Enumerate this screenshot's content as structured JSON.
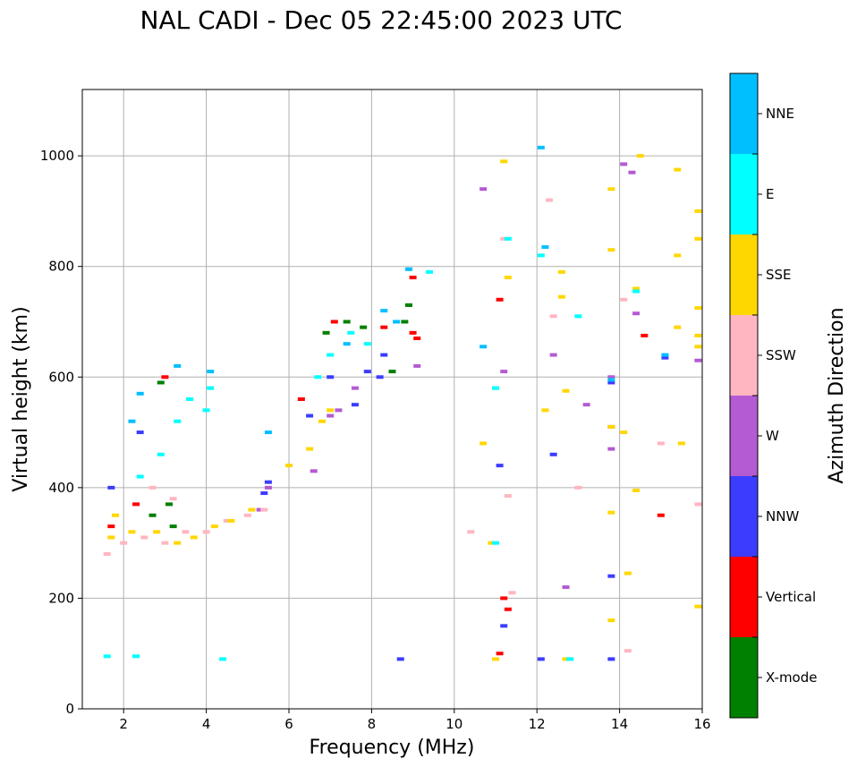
{
  "chart_data": {
    "type": "scatter",
    "title": "NAL CADI - Dec 05 22:45:00 2023 UTC",
    "xlabel": "Frequency (MHz)",
    "ylabel": "Virtual height (km)",
    "xlim": [
      1,
      16
    ],
    "ylim": [
      0,
      1120
    ],
    "xticks": [
      2,
      4,
      6,
      8,
      10,
      12,
      14,
      16
    ],
    "yticks": [
      0,
      200,
      400,
      600,
      800,
      1000
    ],
    "grid": true,
    "colorbar": {
      "label": "Azimuth Direction",
      "categories": [
        {
          "name": "X-mode",
          "color": "#008000"
        },
        {
          "name": "Vertical",
          "color": "#ff0000"
        },
        {
          "name": "NNW",
          "color": "#3c3cff"
        },
        {
          "name": "W",
          "color": "#b45ad2"
        },
        {
          "name": "SSW",
          "color": "#ffb6c1"
        },
        {
          "name": "SSE",
          "color": "#ffd700"
        },
        {
          "name": "E",
          "color": "#00ffff"
        },
        {
          "name": "NNE",
          "color": "#00bfff"
        }
      ]
    },
    "series": [
      {
        "name": "X-mode",
        "color": "#008000",
        "points": [
          [
            2.9,
            590
          ],
          [
            3.2,
            330
          ],
          [
            3.1,
            370
          ],
          [
            2.7,
            350
          ],
          [
            6.9,
            680
          ],
          [
            7.4,
            700
          ],
          [
            7.8,
            690
          ],
          [
            8.5,
            610
          ],
          [
            8.8,
            700
          ],
          [
            8.9,
            730
          ]
        ]
      },
      {
        "name": "Vertical",
        "color": "#ff0000",
        "points": [
          [
            1.7,
            330
          ],
          [
            2.3,
            370
          ],
          [
            3.0,
            600
          ],
          [
            6.3,
            560
          ],
          [
            7.1,
            700
          ],
          [
            8.3,
            690
          ],
          [
            9.0,
            680
          ],
          [
            9.1,
            670
          ],
          [
            9.0,
            780
          ],
          [
            11.1,
            740
          ],
          [
            11.1,
            100
          ],
          [
            11.2,
            200
          ],
          [
            11.3,
            180
          ],
          [
            14.6,
            675
          ],
          [
            15.0,
            350
          ]
        ]
      },
      {
        "name": "NNW",
        "color": "#3c3cff",
        "points": [
          [
            1.7,
            400
          ],
          [
            2.4,
            500
          ],
          [
            5.4,
            390
          ],
          [
            5.5,
            410
          ],
          [
            6.5,
            530
          ],
          [
            7.0,
            600
          ],
          [
            7.6,
            550
          ],
          [
            7.9,
            610
          ],
          [
            8.2,
            600
          ],
          [
            8.3,
            640
          ],
          [
            8.7,
            90
          ],
          [
            11.1,
            440
          ],
          [
            11.2,
            150
          ],
          [
            12.1,
            90
          ],
          [
            12.4,
            460
          ],
          [
            13.8,
            90
          ],
          [
            13.8,
            590
          ],
          [
            13.8,
            240
          ],
          [
            15.1,
            635
          ]
        ]
      },
      {
        "name": "W",
        "color": "#b45ad2",
        "points": [
          [
            5.3,
            360
          ],
          [
            5.5,
            400
          ],
          [
            6.6,
            430
          ],
          [
            7.0,
            530
          ],
          [
            7.2,
            540
          ],
          [
            7.6,
            580
          ],
          [
            9.1,
            620
          ],
          [
            10.7,
            940
          ],
          [
            11.2,
            610
          ],
          [
            12.4,
            640
          ],
          [
            12.7,
            220
          ],
          [
            13.2,
            550
          ],
          [
            13.8,
            600
          ],
          [
            13.8,
            510
          ],
          [
            13.8,
            470
          ],
          [
            14.1,
            985
          ],
          [
            14.3,
            970
          ],
          [
            14.4,
            715
          ],
          [
            15.9,
            630
          ]
        ]
      },
      {
        "name": "SSW",
        "color": "#ffb6c1",
        "points": [
          [
            1.6,
            280
          ],
          [
            2.0,
            300
          ],
          [
            2.5,
            310
          ],
          [
            3.0,
            300
          ],
          [
            3.5,
            320
          ],
          [
            4.0,
            320
          ],
          [
            4.5,
            340
          ],
          [
            5.0,
            350
          ],
          [
            5.4,
            360
          ],
          [
            3.2,
            380
          ],
          [
            2.7,
            400
          ],
          [
            10.4,
            320
          ],
          [
            11.2,
            850
          ],
          [
            11.3,
            385
          ],
          [
            11.4,
            210
          ],
          [
            12.3,
            920
          ],
          [
            12.4,
            710
          ],
          [
            13.0,
            400
          ],
          [
            14.2,
            105
          ],
          [
            14.1,
            740
          ],
          [
            15.0,
            480
          ],
          [
            15.9,
            370
          ]
        ]
      },
      {
        "name": "SSE",
        "color": "#ffd700",
        "points": [
          [
            1.7,
            310
          ],
          [
            1.8,
            350
          ],
          [
            2.2,
            320
          ],
          [
            2.8,
            320
          ],
          [
            3.3,
            300
          ],
          [
            3.7,
            310
          ],
          [
            4.2,
            330
          ],
          [
            4.6,
            340
          ],
          [
            5.1,
            360
          ],
          [
            6.0,
            440
          ],
          [
            6.5,
            470
          ],
          [
            6.8,
            520
          ],
          [
            7.0,
            540
          ],
          [
            10.7,
            480
          ],
          [
            10.9,
            300
          ],
          [
            11.0,
            90
          ],
          [
            11.2,
            990
          ],
          [
            11.3,
            780
          ],
          [
            12.2,
            540
          ],
          [
            12.6,
            790
          ],
          [
            12.6,
            745
          ],
          [
            12.7,
            575
          ],
          [
            12.7,
            90
          ],
          [
            13.8,
            940
          ],
          [
            13.8,
            830
          ],
          [
            13.8,
            510
          ],
          [
            13.8,
            355
          ],
          [
            13.8,
            160
          ],
          [
            14.1,
            500
          ],
          [
            14.2,
            245
          ],
          [
            14.4,
            760
          ],
          [
            14.4,
            395
          ],
          [
            14.5,
            1000
          ],
          [
            15.4,
            975
          ],
          [
            15.4,
            820
          ],
          [
            15.4,
            690
          ],
          [
            15.5,
            480
          ],
          [
            15.9,
            900
          ],
          [
            15.9,
            850
          ],
          [
            15.9,
            725
          ],
          [
            15.9,
            675
          ],
          [
            15.9,
            655
          ],
          [
            15.9,
            185
          ]
        ]
      },
      {
        "name": "E",
        "color": "#00ffff",
        "points": [
          [
            2.4,
            420
          ],
          [
            2.9,
            460
          ],
          [
            3.3,
            520
          ],
          [
            3.6,
            560
          ],
          [
            4.0,
            540
          ],
          [
            4.1,
            580
          ],
          [
            4.4,
            90
          ],
          [
            6.7,
            600
          ],
          [
            7.0,
            640
          ],
          [
            7.5,
            680
          ],
          [
            7.9,
            660
          ],
          [
            9.4,
            790
          ],
          [
            11.0,
            300
          ],
          [
            11.3,
            850
          ],
          [
            11.0,
            580
          ],
          [
            12.1,
            820
          ],
          [
            12.8,
            90
          ],
          [
            13.0,
            710
          ],
          [
            14.4,
            755
          ],
          [
            1.6,
            95
          ],
          [
            2.3,
            95
          ]
        ]
      },
      {
        "name": "NNE",
        "color": "#00bfff",
        "points": [
          [
            2.2,
            520
          ],
          [
            2.4,
            570
          ],
          [
            3.3,
            620
          ],
          [
            4.1,
            610
          ],
          [
            5.5,
            500
          ],
          [
            7.4,
            660
          ],
          [
            8.3,
            720
          ],
          [
            8.6,
            700
          ],
          [
            8.9,
            795
          ],
          [
            10.7,
            655
          ],
          [
            12.1,
            1015
          ],
          [
            12.2,
            835
          ],
          [
            13.8,
            595
          ],
          [
            15.1,
            640
          ]
        ]
      }
    ]
  }
}
